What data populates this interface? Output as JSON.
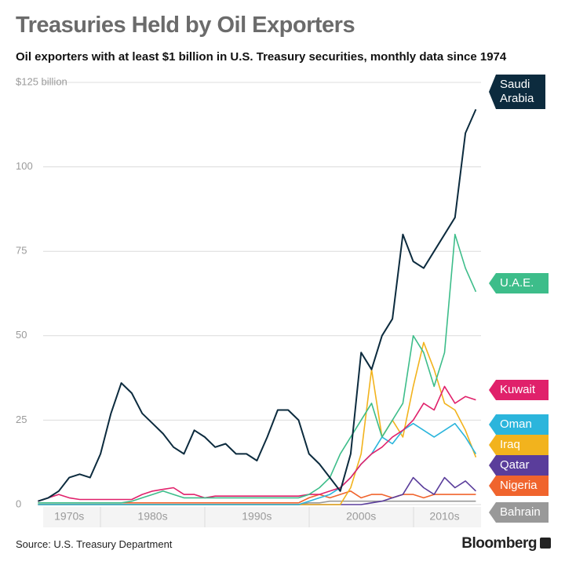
{
  "title": "Treasuries Held by Oil Exporters",
  "subtitle": "Oil exporters with at least $1 billion in U.S. Treasury securities,  monthly data since 1974",
  "source": "Source: U.S. Treasury Department",
  "brand": "Bloomberg",
  "chart_data": {
    "type": "line",
    "x": [
      1974,
      1975,
      1976,
      1977,
      1978,
      1979,
      1980,
      1981,
      1982,
      1983,
      1984,
      1985,
      1986,
      1987,
      1988,
      1989,
      1990,
      1991,
      1992,
      1993,
      1994,
      1995,
      1996,
      1997,
      1998,
      1999,
      2000,
      2001,
      2002,
      2003,
      2004,
      2005,
      2006,
      2007,
      2008,
      2009,
      2010,
      2011,
      2012,
      2013,
      2014,
      2015,
      2016
    ],
    "xlim": [
      1974.5,
      2016.5
    ],
    "xticks": [
      {
        "value": 1977,
        "label": "1970s"
      },
      {
        "value": 1985,
        "label": "1980s"
      },
      {
        "value": 1995,
        "label": "1990s"
      },
      {
        "value": 2005,
        "label": "2000s"
      },
      {
        "value": 2013,
        "label": "2010s"
      }
    ],
    "ylim": [
      0,
      125
    ],
    "yticks": [
      0,
      25,
      50,
      75,
      100,
      {
        "value": 125,
        "label": "$125 billion"
      }
    ],
    "grid": true,
    "series": [
      {
        "name": "Saudi Arabia",
        "color": "#0c2b3e",
        "values": [
          1,
          2,
          4,
          8,
          9,
          8,
          15,
          27,
          36,
          33,
          27,
          24,
          21,
          17,
          15,
          22,
          20,
          17,
          18,
          15,
          15,
          13,
          20,
          28,
          28,
          25,
          15,
          12,
          8,
          4,
          15,
          45,
          40,
          50,
          55,
          80,
          72,
          70,
          75,
          80,
          85,
          110,
          117
        ]
      },
      {
        "name": "U.A.E.",
        "color": "#3dbd8a",
        "values": [
          0.5,
          0.5,
          0.5,
          0.5,
          0.5,
          0.5,
          0.5,
          0.5,
          0.5,
          1,
          2,
          3,
          4,
          3,
          2,
          2,
          2,
          2,
          2,
          2,
          2,
          2,
          2,
          2,
          2,
          2,
          3,
          5,
          8,
          15,
          20,
          25,
          30,
          20,
          25,
          30,
          50,
          45,
          35,
          45,
          80,
          70,
          63
        ]
      },
      {
        "name": "Kuwait",
        "color": "#e0216b",
        "values": [
          1,
          2,
          3,
          2,
          1.5,
          1.5,
          1.5,
          1.5,
          1.5,
          1.5,
          3,
          4,
          4.5,
          5,
          3,
          3,
          2,
          2.5,
          2.5,
          2.5,
          2.5,
          2.5,
          2.5,
          2.5,
          2.5,
          2.5,
          3,
          3,
          4,
          5,
          8,
          12,
          15,
          17,
          20,
          22,
          25,
          30,
          28,
          35,
          30,
          32,
          31
        ]
      },
      {
        "name": "Oman",
        "color": "#2bb5dc",
        "values": [
          0,
          0,
          0,
          0,
          0,
          0,
          0,
          0,
          0,
          0,
          0,
          0,
          0,
          0,
          0,
          0,
          0,
          0,
          0,
          0,
          0,
          0,
          0,
          0,
          0,
          0,
          1,
          2,
          3,
          5,
          8,
          12,
          15,
          20,
          18,
          22,
          24,
          22,
          20,
          22,
          24,
          20,
          15
        ]
      },
      {
        "name": "Iraq",
        "color": "#f2b31d",
        "values": [
          0,
          0,
          0,
          0,
          0,
          0,
          0,
          0,
          0,
          0,
          0,
          0,
          0,
          0,
          0,
          0,
          0,
          0,
          0,
          0,
          0,
          0,
          0,
          0,
          0,
          0,
          0,
          0,
          0,
          0,
          5,
          15,
          40,
          20,
          25,
          20,
          35,
          48,
          40,
          30,
          28,
          22,
          14
        ]
      },
      {
        "name": "Qatar",
        "color": "#5a3d9b",
        "values": [
          0,
          0,
          0,
          0,
          0,
          0,
          0,
          0,
          0,
          0,
          0,
          0,
          0,
          0,
          0,
          0,
          0,
          0,
          0,
          0,
          0,
          0,
          0,
          0,
          0,
          0,
          0,
          0,
          0,
          0,
          0,
          0,
          0.5,
          1,
          2,
          3,
          8,
          5,
          3,
          8,
          5,
          7,
          4
        ]
      },
      {
        "name": "Nigeria",
        "color": "#f0642d",
        "values": [
          0.5,
          0.5,
          0.5,
          0.5,
          0.5,
          0.5,
          0.5,
          0.5,
          0.5,
          0.5,
          0.5,
          0.5,
          0.5,
          0.5,
          0.5,
          0.5,
          0.5,
          0.5,
          0.5,
          0.5,
          0.5,
          0.5,
          0.5,
          0.5,
          0.5,
          0.5,
          2,
          3,
          2,
          3,
          4,
          2,
          3,
          3,
          2,
          3,
          3,
          2,
          3,
          3,
          3,
          3,
          3
        ]
      },
      {
        "name": "Bahrain",
        "color": "#999999",
        "values": [
          0,
          0,
          0,
          0,
          0,
          0,
          0,
          0,
          0,
          0,
          0,
          0,
          0,
          0,
          0,
          0,
          0,
          0,
          0,
          0,
          0,
          0,
          0,
          0,
          0,
          0,
          0.5,
          0.5,
          1,
          1,
          1,
          1,
          1,
          1,
          1,
          1,
          1,
          1,
          1,
          1,
          1,
          1,
          1
        ]
      }
    ]
  }
}
